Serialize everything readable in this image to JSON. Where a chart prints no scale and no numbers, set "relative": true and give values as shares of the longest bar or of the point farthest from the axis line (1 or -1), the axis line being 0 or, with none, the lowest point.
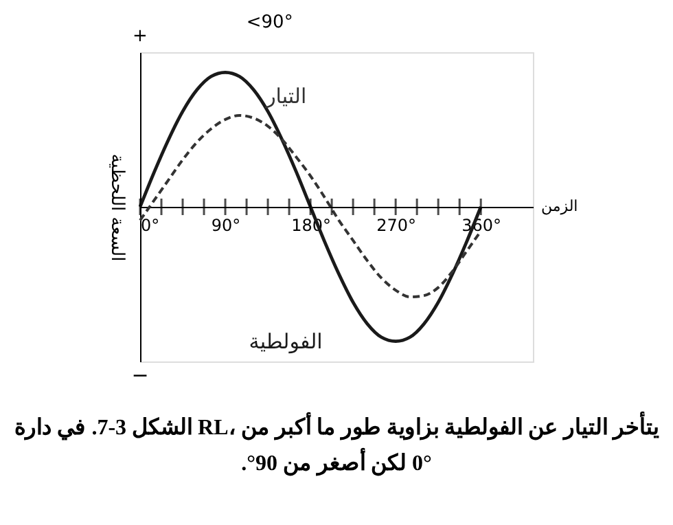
{
  "chart_data": {
    "type": "line",
    "relative": true,
    "xlabel": "الزمن",
    "ylabel": "السعة اللحظية",
    "x": [
      0,
      15,
      30,
      45,
      60,
      75,
      90,
      105,
      120,
      135,
      150,
      165,
      180,
      195,
      210,
      225,
      240,
      255,
      270,
      285,
      300,
      315,
      330,
      345,
      360
    ],
    "xlim": [
      0,
      415
    ],
    "xticks": [
      {
        "value": 0,
        "label": "0°"
      },
      {
        "value": 22.5,
        "label": null
      },
      {
        "value": 45,
        "label": null
      },
      {
        "value": 67.5,
        "label": null
      },
      {
        "value": 90,
        "label": "90°"
      },
      {
        "value": 112.5,
        "label": null
      },
      {
        "value": 135,
        "label": null
      },
      {
        "value": 157.5,
        "label": null
      },
      {
        "value": 180,
        "label": "180°"
      },
      {
        "value": 202.5,
        "label": null
      },
      {
        "value": 225,
        "label": null
      },
      {
        "value": 247.5,
        "label": null
      },
      {
        "value": 270,
        "label": "270°"
      },
      {
        "value": 292.5,
        "label": null
      },
      {
        "value": 315,
        "label": null
      },
      {
        "value": 337.5,
        "label": null
      },
      {
        "value": 360,
        "label": "360°"
      }
    ],
    "series": [
      {
        "name": "الفولطية",
        "color": "#1a1a1a",
        "line_style": "solid",
        "values": [
          0,
          0.26,
          0.5,
          0.71,
          0.87,
          0.97,
          1,
          0.97,
          0.87,
          0.71,
          0.5,
          0.26,
          0,
          -0.26,
          -0.5,
          -0.71,
          -0.87,
          -0.97,
          -1,
          -0.97,
          -0.87,
          -0.71,
          -0.5,
          -0.26,
          0
        ]
      },
      {
        "name": "التيار",
        "color": "#333333",
        "line_style": "dashed",
        "values": [
          -0.1,
          0.05,
          0.2,
          0.35,
          0.48,
          0.58,
          0.65,
          0.68,
          0.66,
          0.6,
          0.5,
          0.37,
          0.23,
          0.07,
          -0.1,
          -0.25,
          -0.4,
          -0.53,
          -0.62,
          -0.67,
          -0.66,
          -0.6,
          -0.48,
          -0.33,
          -0.18
        ]
      }
    ],
    "annotations": [
      "<90°",
      "+",
      "−",
      "الشكل 3-7. في دارة RL، يتأخر التيار عن الفولطية بزاوية طور ما أكبر من 0° لكن أصغر من 90°."
    ],
    "marker": "none",
    "grid": false,
    "legend": false,
    "tick_labels": "x"
  }
}
